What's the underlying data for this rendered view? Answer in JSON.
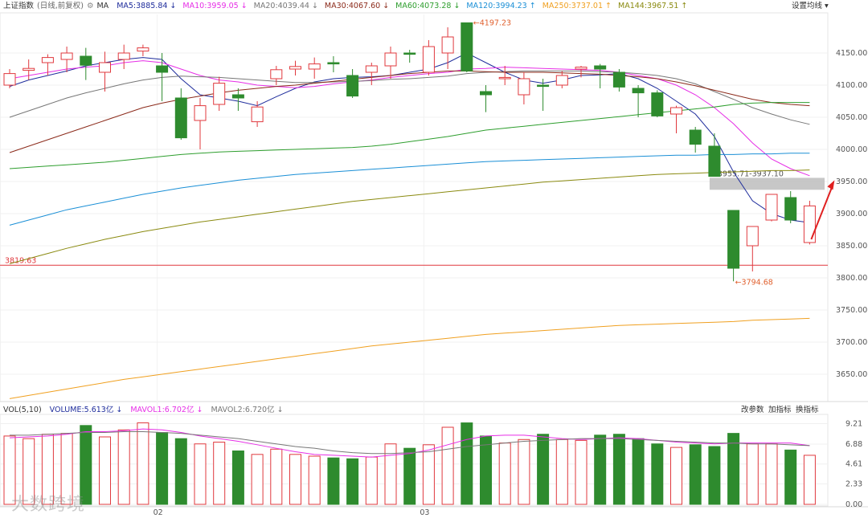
{
  "header": {
    "index_name": "上证指数",
    "period_label": "(日线,前复权)",
    "ma_label": "MA",
    "settings_label": "设置均线",
    "ma_items": [
      {
        "label": "MA5:3885.84",
        "arrow": "↓",
        "color": "#1f2d9c"
      },
      {
        "label": "MA10:3959.05",
        "arrow": "↓",
        "color": "#e62ee6"
      },
      {
        "label": "MA20:4039.44",
        "arrow": "↓",
        "color": "#777777"
      },
      {
        "label": "MA30:4067.60",
        "arrow": "↓",
        "color": "#8b2a1a"
      },
      {
        "label": "MA60:4073.28",
        "arrow": "↓",
        "color": "#2e9e2e"
      },
      {
        "label": "MA120:3994.23",
        "arrow": "↑",
        "color": "#1a8fd6"
      },
      {
        "label": "MA250:3737.01",
        "arrow": "↑",
        "color": "#f0a020"
      },
      {
        "label": "MA144:3967.51",
        "arrow": "↑",
        "color": "#8a8a10"
      }
    ]
  },
  "volume_header": {
    "vol_label": "VOL(5,10)",
    "items": [
      {
        "label": "VOLUME:5.613亿",
        "arrow": "↓",
        "color": "#1f2d9c"
      },
      {
        "label": "MAVOL1:6.702亿",
        "arrow": "↓",
        "color": "#e62ee6"
      },
      {
        "label": "MAVOL2:6.720亿",
        "arrow": "↓",
        "color": "#777777"
      }
    ],
    "buttons": [
      "改参数",
      "加指标",
      "换指标"
    ]
  },
  "watermark": "大数跨境",
  "colors": {
    "up": "#e0393e",
    "down": "#2e8b2e",
    "ref_line": "#e0393e",
    "gap_box": "#bdbdbd"
  },
  "chart_data": {
    "type": "candlestick",
    "price_ticks": [
      4150,
      4100,
      4050,
      4000,
      3950,
      3900,
      3850,
      3800,
      3750,
      3700,
      3650
    ],
    "price_range": [
      3610,
      4210
    ],
    "volume_ticks": [
      9.21,
      6.88,
      4.61,
      2.33,
      0.0
    ],
    "volume_range": [
      0,
      9.9
    ],
    "month_labels": [
      {
        "label": "02",
        "index": 8
      },
      {
        "label": "03",
        "index": 22
      }
    ],
    "candles": [
      {
        "o": 4100,
        "h": 4125,
        "l": 4095,
        "c": 4118,
        "v": 7.8
      },
      {
        "o": 4123,
        "h": 4140,
        "l": 4108,
        "c": 4126,
        "v": 7.5
      },
      {
        "o": 4135,
        "h": 4148,
        "l": 4115,
        "c": 4143,
        "v": 8.0
      },
      {
        "o": 4140,
        "h": 4160,
        "l": 4120,
        "c": 4150,
        "v": 8.1
      },
      {
        "o": 4145,
        "h": 4158,
        "l": 4108,
        "c": 4131,
        "v": 9.0
      },
      {
        "o": 4120,
        "h": 4152,
        "l": 4090,
        "c": 4135,
        "v": 7.7
      },
      {
        "o": 4140,
        "h": 4163,
        "l": 4125,
        "c": 4150,
        "v": 8.5
      },
      {
        "o": 4153,
        "h": 4163,
        "l": 4145,
        "c": 4158,
        "v": 9.3
      },
      {
        "o": 4130,
        "h": 4150,
        "l": 4075,
        "c": 4120,
        "v": 8.2
      },
      {
        "o": 4080,
        "h": 4095,
        "l": 4015,
        "c": 4018,
        "v": 7.5
      },
      {
        "o": 4045,
        "h": 4080,
        "l": 4000,
        "c": 4068,
        "v": 6.9
      },
      {
        "o": 4070,
        "h": 4113,
        "l": 4060,
        "c": 4103,
        "v": 7.1
      },
      {
        "o": 4085,
        "h": 4095,
        "l": 4060,
        "c": 4080,
        "v": 6.1
      },
      {
        "o": 4043,
        "h": 4075,
        "l": 4035,
        "c": 4066,
        "v": 5.7
      },
      {
        "o": 4110,
        "h": 4130,
        "l": 4100,
        "c": 4124,
        "v": 6.3
      },
      {
        "o": 4125,
        "h": 4138,
        "l": 4115,
        "c": 4129,
        "v": 5.7
      },
      {
        "o": 4125,
        "h": 4143,
        "l": 4110,
        "c": 4133,
        "v": 5.5
      },
      {
        "o": 4135,
        "h": 4145,
        "l": 4120,
        "c": 4133,
        "v": 5.3
      },
      {
        "o": 4115,
        "h": 4125,
        "l": 4080,
        "c": 4083,
        "v": 5.2
      },
      {
        "o": 4120,
        "h": 4135,
        "l": 4100,
        "c": 4130,
        "v": 5.4
      },
      {
        "o": 4130,
        "h": 4160,
        "l": 4110,
        "c": 4150,
        "v": 6.9
      },
      {
        "o": 4150,
        "h": 4155,
        "l": 4135,
        "c": 4148,
        "v": 6.4
      },
      {
        "o": 4120,
        "h": 4170,
        "l": 4115,
        "c": 4160,
        "v": 6.8
      },
      {
        "o": 4150,
        "h": 4190,
        "l": 4125,
        "c": 4175,
        "v": 8.8
      },
      {
        "o": 4197,
        "h": 4197,
        "l": 4120,
        "c": 4122,
        "v": 9.3
      },
      {
        "o": 4090,
        "h": 4100,
        "l": 4058,
        "c": 4085,
        "v": 7.8
      },
      {
        "o": 4110,
        "h": 4130,
        "l": 4100,
        "c": 4112,
        "v": 7.0
      },
      {
        "o": 4085,
        "h": 4120,
        "l": 4070,
        "c": 4110,
        "v": 7.4
      },
      {
        "o": 4100,
        "h": 4110,
        "l": 4060,
        "c": 4098,
        "v": 8.0
      },
      {
        "o": 4100,
        "h": 4122,
        "l": 4095,
        "c": 4115,
        "v": 7.4
      },
      {
        "o": 4125,
        "h": 4130,
        "l": 4112,
        "c": 4128,
        "v": 7.3
      },
      {
        "o": 4130,
        "h": 4133,
        "l": 4095,
        "c": 4125,
        "v": 7.9
      },
      {
        "o": 4120,
        "h": 4125,
        "l": 4090,
        "c": 4097,
        "v": 8.0
      },
      {
        "o": 4095,
        "h": 4100,
        "l": 4050,
        "c": 4088,
        "v": 7.5
      },
      {
        "o": 4088,
        "h": 4092,
        "l": 4050,
        "c": 4052,
        "v": 6.9
      },
      {
        "o": 4055,
        "h": 4068,
        "l": 4025,
        "c": 4065,
        "v": 6.5
      },
      {
        "o": 4030,
        "h": 4035,
        "l": 3995,
        "c": 4008,
        "v": 6.8
      },
      {
        "o": 4005,
        "h": 4025,
        "l": 3958,
        "c": 3958,
        "v": 6.6
      },
      {
        "o": 3905,
        "h": 3905,
        "l": 3794.68,
        "c": 3815,
        "v": 8.1
      },
      {
        "o": 3850,
        "h": 3880,
        "l": 3810,
        "c": 3880,
        "v": 6.9
      },
      {
        "o": 3890,
        "h": 3930,
        "l": 3888,
        "c": 3930,
        "v": 6.9
      },
      {
        "o": 3925,
        "h": 3935,
        "l": 3885,
        "c": 3890,
        "v": 6.2
      },
      {
        "o": 3855,
        "h": 3920,
        "l": 3852,
        "c": 3912,
        "v": 5.6
      }
    ],
    "ma_series": [
      {
        "key": "MA5",
        "color": "#1f2d9c",
        "values": [
          4098,
          4108,
          4115,
          4122,
          4130,
          4135,
          4140,
          4143,
          4140,
          4110,
          4085,
          4080,
          4075,
          4068,
          4082,
          4095,
          4105,
          4110,
          4112,
          4113,
          4115,
          4120,
          4125,
          4135,
          4150,
          4135,
          4120,
          4108,
          4103,
          4108,
          4115,
          4116,
          4118,
          4110,
          4095,
          4075,
          4055,
          4020,
          3965,
          3920,
          3900,
          3890,
          3886
        ]
      },
      {
        "key": "MA10",
        "color": "#e62ee6",
        "values": [
          4110,
          4115,
          4120,
          4125,
          4128,
          4130,
          4135,
          4138,
          4135,
          4125,
          4115,
          4108,
          4105,
          4100,
          4098,
          4096,
          4098,
          4102,
          4105,
          4108,
          4112,
          4115,
          4118,
          4120,
          4125,
          4126,
          4128,
          4127,
          4126,
          4125,
          4124,
          4123,
          4120,
          4115,
          4110,
          4100,
          4085,
          4065,
          4040,
          4010,
          3985,
          3970,
          3959
        ]
      },
      {
        "key": "MA20",
        "color": "#777777",
        "values": [
          4050,
          4060,
          4070,
          4080,
          4088,
          4095,
          4102,
          4108,
          4112,
          4114,
          4113,
          4112,
          4110,
          4108,
          4106,
          4104,
          4104,
          4105,
          4106,
          4107,
          4109,
          4110,
          4112,
          4114,
          4118,
          4120,
          4121,
          4122,
          4122,
          4122,
          4122,
          4121,
          4120,
          4118,
          4115,
          4110,
          4102,
          4090,
          4078,
          4065,
          4055,
          4046,
          4039
        ]
      },
      {
        "key": "MA30",
        "color": "#8b2a1a",
        "values": [
          3995,
          4005,
          4015,
          4025,
          4035,
          4045,
          4055,
          4065,
          4072,
          4078,
          4083,
          4088,
          4092,
          4095,
          4098,
          4100,
          4103,
          4106,
          4109,
          4112,
          4115,
          4118,
          4120,
          4122,
          4122,
          4121,
          4120,
          4120,
          4120,
          4119,
          4118,
          4117,
          4115,
          4113,
          4110,
          4105,
          4099,
          4092,
          4085,
          4078,
          4073,
          4070,
          4068
        ]
      },
      {
        "key": "MA60",
        "color": "#2e9e2e",
        "values": [
          3970,
          3972,
          3974,
          3976,
          3978,
          3980,
          3983,
          3986,
          3989,
          3992,
          3994,
          3996,
          3997,
          3998,
          3999,
          4000,
          4001,
          4002,
          4003,
          4005,
          4008,
          4012,
          4016,
          4020,
          4025,
          4030,
          4033,
          4036,
          4039,
          4042,
          4045,
          4048,
          4051,
          4054,
          4057,
          4060,
          4063,
          4066,
          4070,
          4072,
          4073,
          4073,
          4073
        ]
      },
      {
        "key": "MA120",
        "color": "#1a8fd6",
        "values": [
          3882,
          3890,
          3898,
          3906,
          3912,
          3918,
          3924,
          3930,
          3935,
          3940,
          3944,
          3948,
          3952,
          3955,
          3958,
          3961,
          3963,
          3965,
          3967,
          3969,
          3971,
          3973,
          3975,
          3977,
          3979,
          3981,
          3982,
          3983,
          3984,
          3985,
          3986,
          3987,
          3988,
          3989,
          3990,
          3991,
          3991,
          3992,
          3992,
          3993,
          3993,
          3994,
          3994
        ]
      },
      {
        "key": "MA144",
        "color": "#8a8a10",
        "values": [
          3822,
          3830,
          3838,
          3846,
          3853,
          3860,
          3866,
          3872,
          3877,
          3882,
          3887,
          3891,
          3895,
          3899,
          3903,
          3907,
          3911,
          3915,
          3919,
          3922,
          3925,
          3928,
          3931,
          3934,
          3937,
          3940,
          3943,
          3946,
          3949,
          3951,
          3953,
          3955,
          3957,
          3959,
          3961,
          3962,
          3963,
          3964,
          3965,
          3966,
          3967,
          3967,
          3968
        ]
      },
      {
        "key": "MA250",
        "color": "#f0a020",
        "values": [
          3612,
          3617,
          3622,
          3627,
          3632,
          3637,
          3642,
          3646,
          3650,
          3654,
          3658,
          3662,
          3666,
          3670,
          3674,
          3678,
          3682,
          3686,
          3690,
          3694,
          3697,
          3700,
          3703,
          3706,
          3709,
          3712,
          3714,
          3716,
          3718,
          3720,
          3722,
          3724,
          3726,
          3727,
          3728,
          3729,
          3730,
          3731,
          3732,
          3734,
          3735,
          3736,
          3737
        ]
      }
    ],
    "vol_ma_series": [
      {
        "key": "MAVOL1",
        "color": "#e62ee6",
        "values": [
          7.6,
          7.7,
          7.8,
          8.0,
          8.3,
          8.3,
          8.4,
          8.6,
          8.5,
          8.2,
          7.8,
          7.5,
          7.2,
          6.8,
          6.4,
          6.0,
          5.7,
          5.6,
          5.5,
          5.4,
          5.6,
          5.8,
          6.2,
          6.8,
          7.4,
          7.8,
          7.9,
          7.9,
          7.7,
          7.5,
          7.4,
          7.5,
          7.6,
          7.5,
          7.3,
          7.1,
          7.0,
          6.9,
          7.0,
          7.0,
          7.0,
          7.0,
          6.7
        ]
      },
      {
        "key": "MAVOL2",
        "color": "#777777",
        "values": [
          7.9,
          7.9,
          8.0,
          8.1,
          8.2,
          8.2,
          8.3,
          8.3,
          8.2,
          8.1,
          7.9,
          7.7,
          7.5,
          7.2,
          6.9,
          6.6,
          6.4,
          6.1,
          5.9,
          5.8,
          5.8,
          5.9,
          6.0,
          6.3,
          6.6,
          6.8,
          7.0,
          7.2,
          7.3,
          7.4,
          7.5,
          7.5,
          7.5,
          7.4,
          7.3,
          7.2,
          7.1,
          7.0,
          7.0,
          6.9,
          6.9,
          6.8,
          6.7
        ]
      }
    ],
    "annotations": {
      "high_label": "4197.23",
      "low_label": "3794.68",
      "gap_label": "3955.71-3937.10",
      "gap_range": [
        3937.1,
        3955.71
      ],
      "ref_label": "3819.63",
      "ref_value": 3819.63
    }
  }
}
